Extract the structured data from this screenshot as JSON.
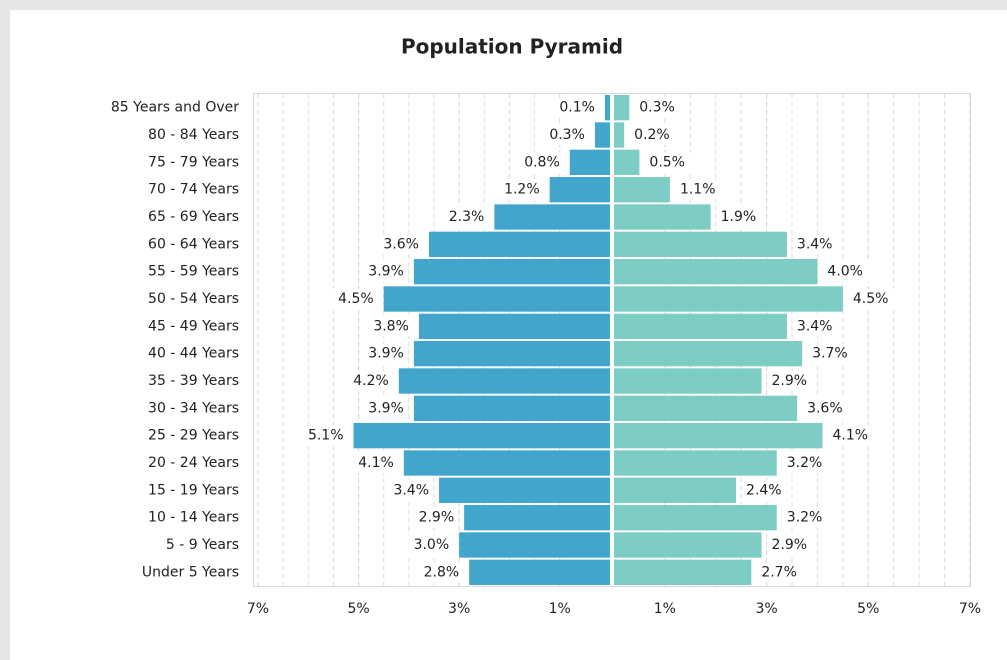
{
  "chart_data": {
    "type": "pyramid",
    "title": "Population Pyramid",
    "categories": [
      "85 Years and Over",
      "80 - 84 Years",
      "75 - 79 Years",
      "70 - 74 Years",
      "65 - 69 Years",
      "60 - 64 Years",
      "55 - 59 Years",
      "50 - 54 Years",
      "45 - 49 Years",
      "40 - 44 Years",
      "35 - 39 Years",
      "30 - 34 Years",
      "25 - 29 Years",
      "20 - 24 Years",
      "15 - 19 Years",
      "10 - 14 Years",
      "5 - 9 Years",
      "Under 5 Years"
    ],
    "series": [
      {
        "color": "#42a5cc",
        "values": [
          0.1,
          0.3,
          0.8,
          1.2,
          2.3,
          3.6,
          3.9,
          4.5,
          3.8,
          3.9,
          4.2,
          3.9,
          5.1,
          4.1,
          3.4,
          2.9,
          3.0,
          2.8
        ],
        "value_labels": [
          "0.1%",
          "0.3%",
          "0.8%",
          "1.2%",
          "2.3%",
          "3.6%",
          "3.9%",
          "4.5%",
          "3.8%",
          "3.9%",
          "4.2%",
          "3.9%",
          "5.1%",
          "4.1%",
          "3.4%",
          "2.9%",
          "3.0%",
          "2.8%"
        ]
      },
      {
        "color": "#7dcdc4",
        "values": [
          0.3,
          0.2,
          0.5,
          1.1,
          1.9,
          3.4,
          4.0,
          4.5,
          3.4,
          3.7,
          2.9,
          3.6,
          4.1,
          3.2,
          2.4,
          3.2,
          2.9,
          2.7
        ],
        "value_labels": [
          "0.3%",
          "0.2%",
          "0.5%",
          "1.1%",
          "1.9%",
          "3.4%",
          "4.0%",
          "4.5%",
          "3.4%",
          "3.7%",
          "2.9%",
          "3.6%",
          "4.1%",
          "3.2%",
          "2.4%",
          "3.2%",
          "2.9%",
          "2.7%"
        ]
      }
    ],
    "xlim": [
      -7,
      7
    ],
    "xticks": [
      {
        "value": -7,
        "label": "7%"
      },
      {
        "value": -5,
        "label": "5%"
      },
      {
        "value": -3,
        "label": "3%"
      },
      {
        "value": -1,
        "label": "1%"
      },
      {
        "value": 1,
        "label": "1%"
      },
      {
        "value": 3,
        "label": "3%"
      },
      {
        "value": 5,
        "label": "5%"
      },
      {
        "value": 7,
        "label": "7%"
      }
    ],
    "grid": true
  }
}
